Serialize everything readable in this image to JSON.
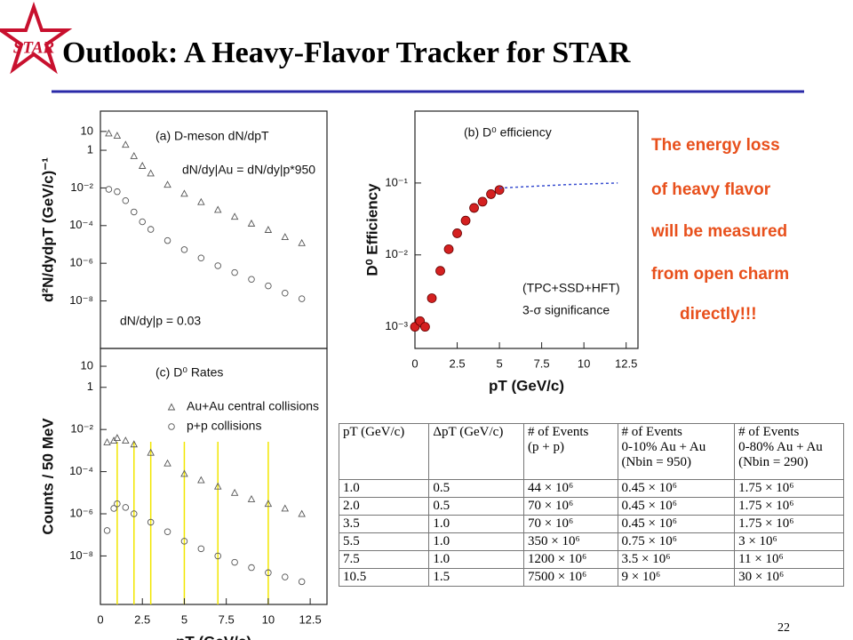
{
  "title": "Outlook: A Heavy-Flavor Tracker for STAR",
  "logo": "STAR",
  "page_number": "22",
  "notes": [
    "The energy loss",
    "of heavy flavor",
    "will be measured",
    "from open charm",
    "directly!!!"
  ],
  "chart_data": [
    {
      "type": "scatter",
      "log_y": true,
      "ylabel": "d²N/dydpT (GeV/c)⁻¹",
      "annotations": [
        "(a) D-meson dN/dpT",
        "dN/dy|Au = dN/dy|p*950",
        "dN/dy|p = 0.03"
      ],
      "xlim": [
        0,
        13.5
      ],
      "ylim": [
        3e-11,
        120
      ],
      "yticks": [
        {
          "value": 10,
          "label": "10"
        },
        {
          "value": 1,
          "label": "1"
        },
        {
          "value": 0.01,
          "label": "10⁻²"
        },
        {
          "value": 0.0001,
          "label": "10⁻⁴"
        },
        {
          "value": 1e-06,
          "label": "10⁻⁶"
        },
        {
          "value": 1e-08,
          "label": "10⁻⁸"
        }
      ],
      "series": [
        {
          "marker": "triangle",
          "color": "#555555",
          "x": [
            0.5,
            1,
            1.5,
            2,
            2.5,
            3,
            4,
            5,
            6,
            7,
            8,
            9,
            10,
            11,
            12
          ],
          "values": [
            8,
            6,
            2,
            0.5,
            0.15,
            0.06,
            0.015,
            0.005,
            0.0018,
            0.0007,
            0.0003,
            0.00013,
            6e-05,
            2.5e-05,
            1.2e-05
          ]
        },
        {
          "marker": "circle",
          "color": "#555555",
          "x": [
            0.5,
            1,
            1.5,
            2,
            2.5,
            3,
            4,
            5,
            6,
            7,
            8,
            9,
            10,
            11,
            12
          ],
          "values": [
            0.0084,
            0.0063,
            0.0021,
            0.00053,
            0.00016,
            6.3e-05,
            1.6e-05,
            5.3e-06,
            1.9e-06,
            7.4e-07,
            3.2e-07,
            1.4e-07,
            6.3e-08,
            2.6e-08,
            1.3e-08
          ]
        }
      ]
    },
    {
      "type": "scatter",
      "log_y": true,
      "xlabel": "pT (GeV/c)",
      "ylabel": "D⁰ Efficiency",
      "annotations": [
        "(b) D⁰ efficiency",
        "(TPC+SSD+HFT)",
        "3-σ significance"
      ],
      "xlim": [
        0,
        13.2
      ],
      "ylim": [
        0.0005,
        1
      ],
      "xticks": [
        0,
        2.5,
        5,
        7.5,
        10,
        12.5
      ],
      "yticks": [
        {
          "value": 0.1,
          "label": "10⁻¹"
        },
        {
          "value": 0.01,
          "label": "10⁻²"
        },
        {
          "value": 0.001,
          "label": "10⁻³"
        }
      ],
      "series": [
        {
          "marker": "filled-circle",
          "color": "#d42020",
          "x": [
            0,
            0.3,
            0.6,
            1,
            1.5,
            2,
            2.5,
            3,
            3.5,
            4,
            4.5,
            5
          ],
          "values": [
            0.001,
            0.0012,
            0.001,
            0.0025,
            0.006,
            0.012,
            0.02,
            0.03,
            0.045,
            0.055,
            0.07,
            0.08
          ]
        },
        {
          "marker": "dashed-line",
          "color": "#3a4fd0",
          "x": [
            5,
            7,
            9,
            12
          ],
          "values": [
            0.085,
            0.09,
            0.095,
            0.1
          ]
        }
      ]
    },
    {
      "type": "scatter",
      "log_y": true,
      "xlabel": "pT (GeV/c)",
      "ylabel": "Counts / 50 MeV",
      "annotations": [
        "(c) D⁰ Rates"
      ],
      "xlim": [
        0,
        13.5
      ],
      "ylim": [
        5e-11,
        70
      ],
      "xticks": [
        0,
        2.5,
        5,
        7.5,
        10,
        12.5
      ],
      "yticks": [
        {
          "value": 10,
          "label": "10"
        },
        {
          "value": 1,
          "label": "1"
        },
        {
          "value": 0.01,
          "label": "10⁻²"
        },
        {
          "value": 0.0001,
          "label": "10⁻⁴"
        },
        {
          "value": 1e-06,
          "label": "10⁻⁶"
        },
        {
          "value": 1e-08,
          "label": "10⁻⁸"
        }
      ],
      "highlight_x": [
        1,
        2,
        3,
        5,
        7,
        10
      ],
      "highlight_color": "#f2e600",
      "series": [
        {
          "name": "Au+Au central collisions",
          "marker": "triangle",
          "color": "#555555",
          "x": [
            0.4,
            0.8,
            1,
            1.5,
            2,
            3,
            4,
            5,
            6,
            7,
            8,
            9,
            10,
            11,
            12
          ],
          "values": [
            0.0025,
            0.003,
            0.004,
            0.003,
            0.002,
            0.0008,
            0.00025,
            8e-05,
            4e-05,
            2e-05,
            1e-05,
            5e-06,
            3e-06,
            1.8e-06,
            1e-06
          ]
        },
        {
          "name": "p+p collisions",
          "marker": "circle",
          "color": "#555555",
          "x": [
            0.4,
            0.8,
            1,
            1.5,
            2,
            3,
            4,
            5,
            6,
            7,
            8,
            9,
            10,
            11,
            12
          ],
          "values": [
            1.6e-07,
            1.8e-06,
            3e-06,
            2e-06,
            1e-06,
            4e-07,
            1.4e-07,
            5e-08,
            2.2e-08,
            1e-08,
            5e-09,
            2.8e-09,
            1.6e-09,
            1e-09,
            6e-10
          ]
        }
      ]
    }
  ],
  "table": {
    "header": [
      [
        "pT (GeV/c)"
      ],
      [
        "ΔpT (GeV/c)"
      ],
      [
        "# of Events",
        "(p + p)"
      ],
      [
        "# of Events",
        "0-10% Au + Au",
        "(Nbin = 950)"
      ],
      [
        "# of Events",
        "0-80% Au + Au",
        "(Nbin = 290)"
      ]
    ],
    "rows": [
      [
        "1.0",
        "0.5",
        "44 × 10⁶",
        "0.45 × 10⁶",
        "1.75 × 10⁶"
      ],
      [
        "2.0",
        "0.5",
        "70 × 10⁶",
        "0.45 × 10⁶",
        "1.75 × 10⁶"
      ],
      [
        "3.5",
        "1.0",
        "70 × 10⁶",
        "0.45 × 10⁶",
        "1.75 × 10⁶"
      ],
      [
        "5.5",
        "1.0",
        "350 × 10⁶",
        "0.75 × 10⁶",
        "3 × 10⁶"
      ],
      [
        "7.5",
        "1.0",
        "1200 × 10⁶",
        "3.5 × 10⁶",
        "11 × 10⁶"
      ],
      [
        "10.5",
        "1.5",
        "7500 × 10⁶",
        "9 × 10⁶",
        "30 × 10⁶"
      ]
    ]
  }
}
